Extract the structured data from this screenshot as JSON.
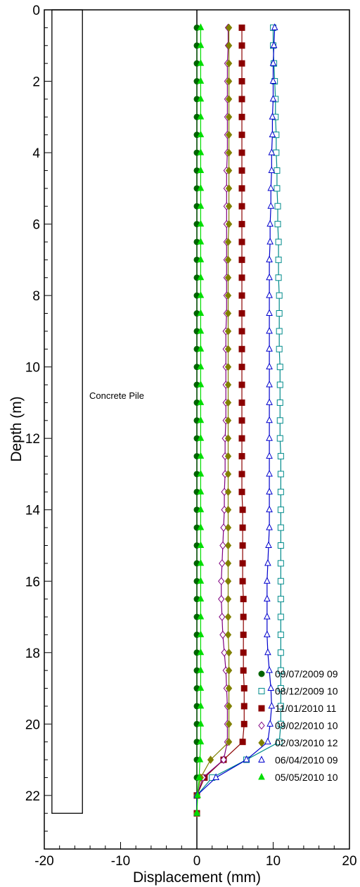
{
  "chart_data": {
    "type": "line",
    "xlabel": "Displacement (mm)",
    "ylabel": "Depth (m)",
    "xlim": [
      -20,
      20
    ],
    "ylim": [
      23.5,
      0
    ],
    "x_ticks": [
      "-20",
      "-10",
      "0",
      "10",
      "20"
    ],
    "y_ticks": [
      "0",
      "2",
      "4",
      "6",
      "8",
      "10",
      "12",
      "14",
      "16",
      "18",
      "20",
      "22"
    ],
    "grid": false,
    "legend_position": "bottom-right",
    "annotation": {
      "label": "Concrete Pile",
      "x_range": [
        -19,
        -15
      ],
      "depth_range": [
        0,
        22.5
      ]
    },
    "depths": [
      0.5,
      1.0,
      1.5,
      2.0,
      2.5,
      3.0,
      3.5,
      4.0,
      4.5,
      5.0,
      5.5,
      6.0,
      6.5,
      7.0,
      7.5,
      8.0,
      8.5,
      9.0,
      9.5,
      10.0,
      10.5,
      11.0,
      11.5,
      12.0,
      12.5,
      13.0,
      13.5,
      14.0,
      14.5,
      15.0,
      15.5,
      16.0,
      16.5,
      17.0,
      17.5,
      18.0,
      18.5,
      19.0,
      19.5,
      20.0,
      20.5,
      21.0,
      21.5,
      22.0,
      22.5
    ],
    "series": [
      {
        "name": "09/07/2009 09",
        "color": "#006400",
        "marker": "circle",
        "filled": true,
        "values": [
          0,
          0,
          0,
          0,
          0,
          0,
          0,
          0,
          0,
          0,
          0,
          0,
          0,
          0,
          0,
          0,
          0,
          0,
          0,
          0,
          0,
          0,
          0,
          0,
          0,
          0,
          0,
          0,
          0,
          0,
          0,
          0,
          0,
          0,
          0,
          0,
          0,
          0,
          0,
          0,
          0,
          0,
          0,
          0,
          0
        ]
      },
      {
        "name": "08/12/2009 10",
        "color": "#008b8b",
        "marker": "square",
        "filled": false,
        "values": [
          10.0,
          10.0,
          10.1,
          10.2,
          10.3,
          10.3,
          10.4,
          10.4,
          10.5,
          10.5,
          10.6,
          10.6,
          10.7,
          10.7,
          10.7,
          10.8,
          10.8,
          10.8,
          10.8,
          10.9,
          10.9,
          10.9,
          10.9,
          10.9,
          11.0,
          11.0,
          11.0,
          11.0,
          11.0,
          11.0,
          11.0,
          11.0,
          11.0,
          11.0,
          11.0,
          11.0,
          11.0,
          11.0,
          11.0,
          11.0,
          10.8,
          6.5,
          2.0,
          0,
          0
        ]
      },
      {
        "name": "11/01/2010 11",
        "color": "#8b0000",
        "marker": "square",
        "filled": true,
        "values": [
          5.9,
          5.9,
          5.9,
          5.9,
          5.9,
          5.9,
          5.9,
          5.9,
          5.9,
          5.9,
          5.9,
          5.9,
          5.9,
          5.9,
          5.9,
          5.9,
          5.9,
          5.9,
          5.9,
          5.9,
          5.9,
          5.9,
          5.9,
          5.9,
          5.9,
          5.9,
          5.9,
          6.0,
          6.0,
          6.0,
          6.0,
          6.0,
          6.1,
          6.1,
          6.1,
          6.1,
          6.1,
          6.2,
          6.2,
          6.2,
          6.0,
          3.5,
          1.0,
          0,
          0
        ]
      },
      {
        "name": "09/02/2010 10",
        "color": "#800080",
        "marker": "diamond",
        "filled": false,
        "values": [
          4.1,
          4.1,
          4.0,
          4.0,
          4.0,
          4.0,
          4.0,
          4.0,
          3.9,
          3.9,
          3.9,
          3.9,
          3.9,
          3.9,
          3.9,
          3.9,
          3.9,
          3.8,
          3.8,
          3.8,
          3.8,
          3.8,
          3.8,
          3.7,
          3.7,
          3.7,
          3.6,
          3.6,
          3.5,
          3.4,
          3.3,
          3.2,
          3.2,
          3.3,
          3.4,
          3.6,
          3.8,
          3.9,
          4.0,
          4.0,
          4.0,
          3.5,
          0.8,
          0,
          0
        ]
      },
      {
        "name": "02/03/2010 12",
        "color": "#808000",
        "marker": "diamond",
        "filled": true,
        "values": [
          4.2,
          4.2,
          4.2,
          4.2,
          4.2,
          4.2,
          4.2,
          4.2,
          4.2,
          4.2,
          4.2,
          4.2,
          4.1,
          4.1,
          4.1,
          4.1,
          4.1,
          4.1,
          4.1,
          4.1,
          4.1,
          4.1,
          4.1,
          4.1,
          4.1,
          4.1,
          4.1,
          4.1,
          4.1,
          4.1,
          4.1,
          4.1,
          4.1,
          4.1,
          4.1,
          4.2,
          4.2,
          4.2,
          4.2,
          4.2,
          4.2,
          1.8,
          0.5,
          0,
          0
        ]
      },
      {
        "name": "06/04/2010 09",
        "color": "#0000cd",
        "marker": "triangle",
        "filled": false,
        "values": [
          10.2,
          10.1,
          10.0,
          10.0,
          10.0,
          9.9,
          9.9,
          9.8,
          9.8,
          9.7,
          9.7,
          9.6,
          9.6,
          9.5,
          9.5,
          9.5,
          9.5,
          9.5,
          9.5,
          9.5,
          9.5,
          9.5,
          9.5,
          9.5,
          9.5,
          9.5,
          9.5,
          9.5,
          9.5,
          9.4,
          9.3,
          9.2,
          9.2,
          9.2,
          9.2,
          9.3,
          9.5,
          9.7,
          9.8,
          9.6,
          9.3,
          6.5,
          2.5,
          0,
          0
        ]
      },
      {
        "name": "05/05/2010 10",
        "color": "#00dd00",
        "marker": "triangle",
        "filled": true,
        "values": [
          0.5,
          0.5,
          0.5,
          0.5,
          0.5,
          0.5,
          0.5,
          0.5,
          0.5,
          0.5,
          0.5,
          0.5,
          0.5,
          0.5,
          0.5,
          0.5,
          0.5,
          0.5,
          0.5,
          0.5,
          0.5,
          0.5,
          0.5,
          0.5,
          0.5,
          0.5,
          0.5,
          0.5,
          0.5,
          0.5,
          0.5,
          0.5,
          0.5,
          0.5,
          0.5,
          0.5,
          0.5,
          0.5,
          0.5,
          0.5,
          0.5,
          0.4,
          0.3,
          0.1,
          0
        ]
      }
    ]
  }
}
